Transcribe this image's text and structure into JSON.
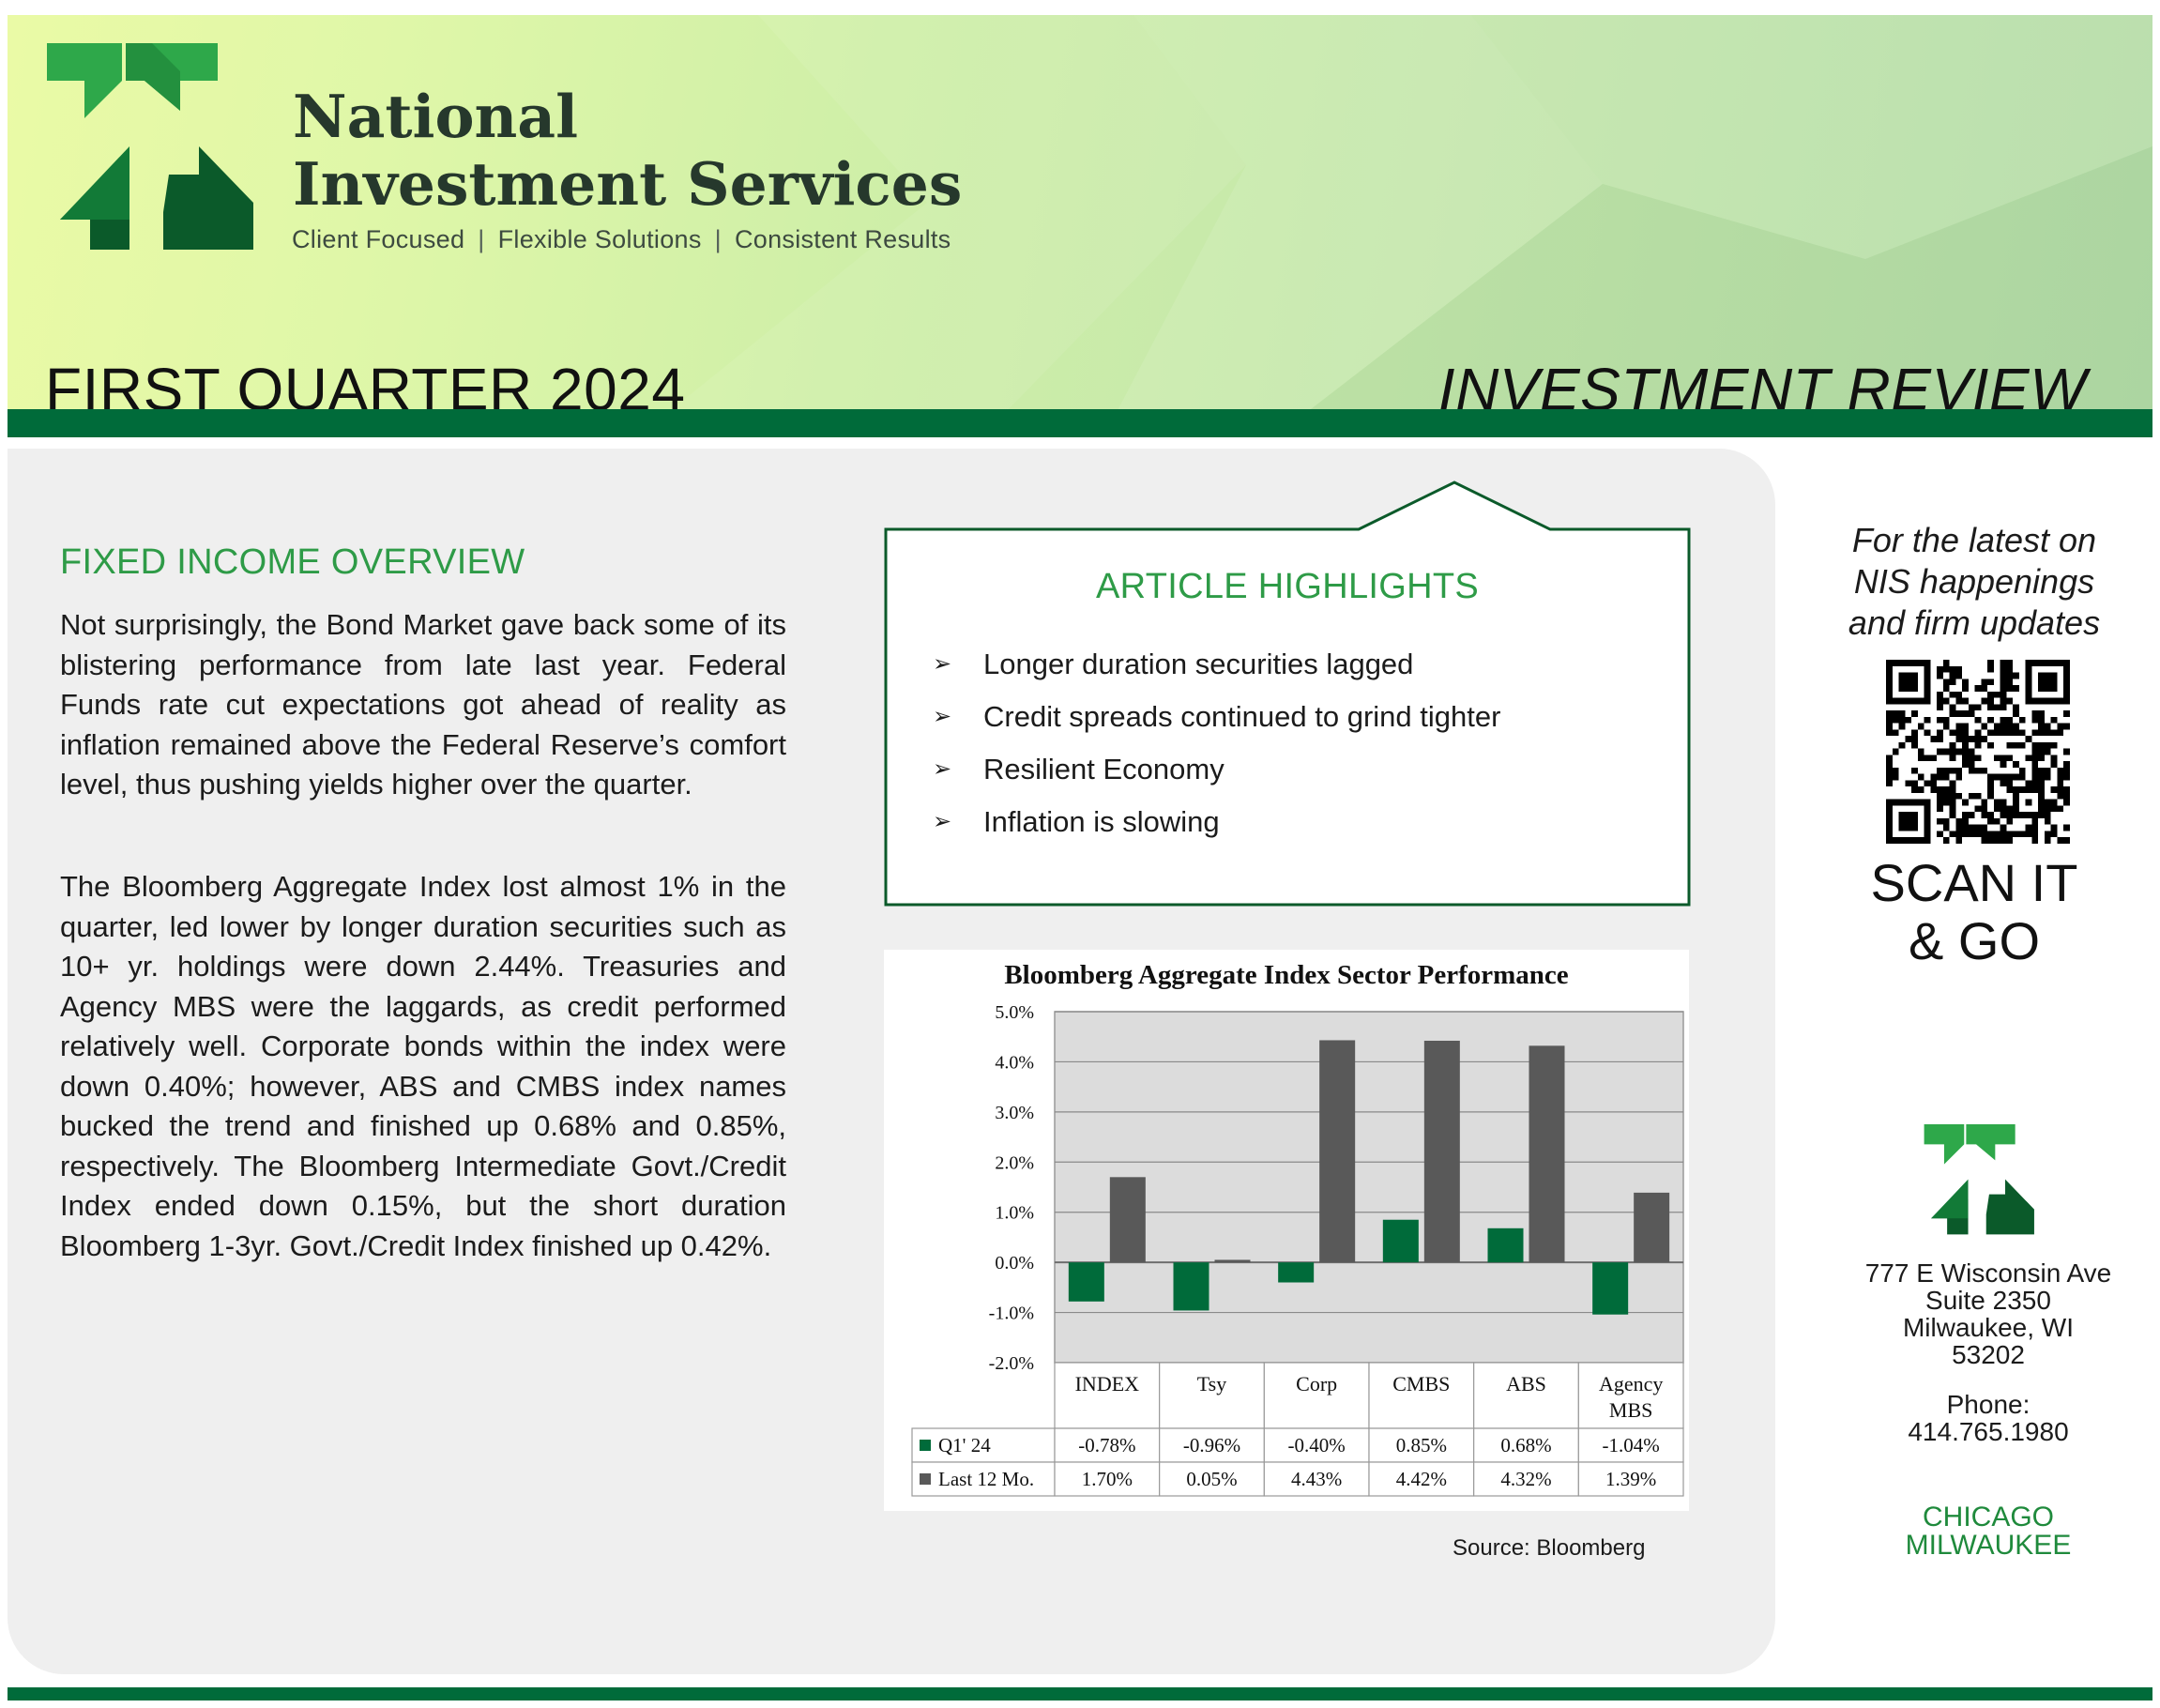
{
  "header": {
    "brand_line1": "National",
    "brand_line2": "Investment Services",
    "tagline": [
      "Client Focused",
      "Flexible Solutions",
      "Consistent Results"
    ],
    "quarter": "FIRST QUARTER 2024",
    "report_title": "INVESTMENT REVIEW"
  },
  "colors": {
    "brand_green": "#006b3a",
    "accent_green": "#2e9b47",
    "light_green": "#2ea84a",
    "panel_gray": "#efefef",
    "bar_q1": "#006b3a",
    "bar_12mo": "#595959"
  },
  "main": {
    "section_title": "FIXED INCOME OVERVIEW",
    "paragraph1": "Not surprisingly, the Bond Market gave back some of its blistering performance from late last year. Federal Funds rate cut expectations got ahead of reality as inflation remained above the Federal Reserve’s comfort level, thus pushing yields higher over the quarter.",
    "paragraph2": "The Bloomberg Aggregate Index lost almost 1% in the quarter, led lower by longer duration securities such as 10+ yr. holdings were down 2.44%. Treasuries and Agency MBS were the laggards, as credit performed relatively well. Corporate bonds within the index were down 0.40%; however, ABS and CMBS index names bucked the trend and finished up 0.68% and 0.85%, respectively. The Bloomberg Intermediate Govt./Credit Index ended down 0.15%, but the short duration Bloomberg 1-3yr. Govt./Credit Index finished up 0.42%."
  },
  "highlights": {
    "title": "ARTICLE HIGHLIGHTS",
    "items": [
      "Longer duration securities lagged",
      "Credit spreads continued to grind tighter",
      "Resilient Economy",
      "Inflation is slowing"
    ]
  },
  "chart_data": {
    "type": "bar",
    "title": "Bloomberg Aggregate Index Sector Performance",
    "categories": [
      "INDEX",
      "Tsy",
      "Corp",
      "CMBS",
      "ABS",
      "Agency MBS"
    ],
    "series": [
      {
        "name": "Q1' 24",
        "values": [
          -0.78,
          -0.96,
          -0.4,
          0.85,
          0.68,
          -1.04
        ],
        "labels": [
          "-0.78%",
          "-0.96%",
          "-0.40%",
          "0.85%",
          "0.68%",
          "-1.04%"
        ],
        "color": "#006b3a"
      },
      {
        "name": "Last 12 Mo.",
        "values": [
          1.7,
          0.05,
          4.43,
          4.42,
          4.32,
          1.39
        ],
        "labels": [
          "1.70%",
          "0.05%",
          "4.43%",
          "4.42%",
          "4.32%",
          "1.39%"
        ],
        "color": "#595959"
      }
    ],
    "ylim": [
      -2.0,
      5.0
    ],
    "yticks": [
      "5.0%",
      "4.0%",
      "3.0%",
      "2.0%",
      "1.0%",
      "0.0%",
      "-1.0%",
      "-2.0%"
    ],
    "grid": true,
    "legend": "data table below plot"
  },
  "source": "Source: Bloomberg",
  "sidebar": {
    "promo": [
      "For the latest on",
      "NIS happenings",
      "and firm updates"
    ],
    "qr_icon": "qr-code-icon",
    "scan_line1": "SCAN IT",
    "scan_line2": "& GO",
    "address": [
      "777 E Wisconsin Ave",
      "Suite 2350",
      "Milwaukee, WI",
      "53202"
    ],
    "phone_label": "Phone:",
    "phone": "414.765.1980",
    "cities": [
      "CHICAGO",
      "MILWAUKEE"
    ]
  }
}
